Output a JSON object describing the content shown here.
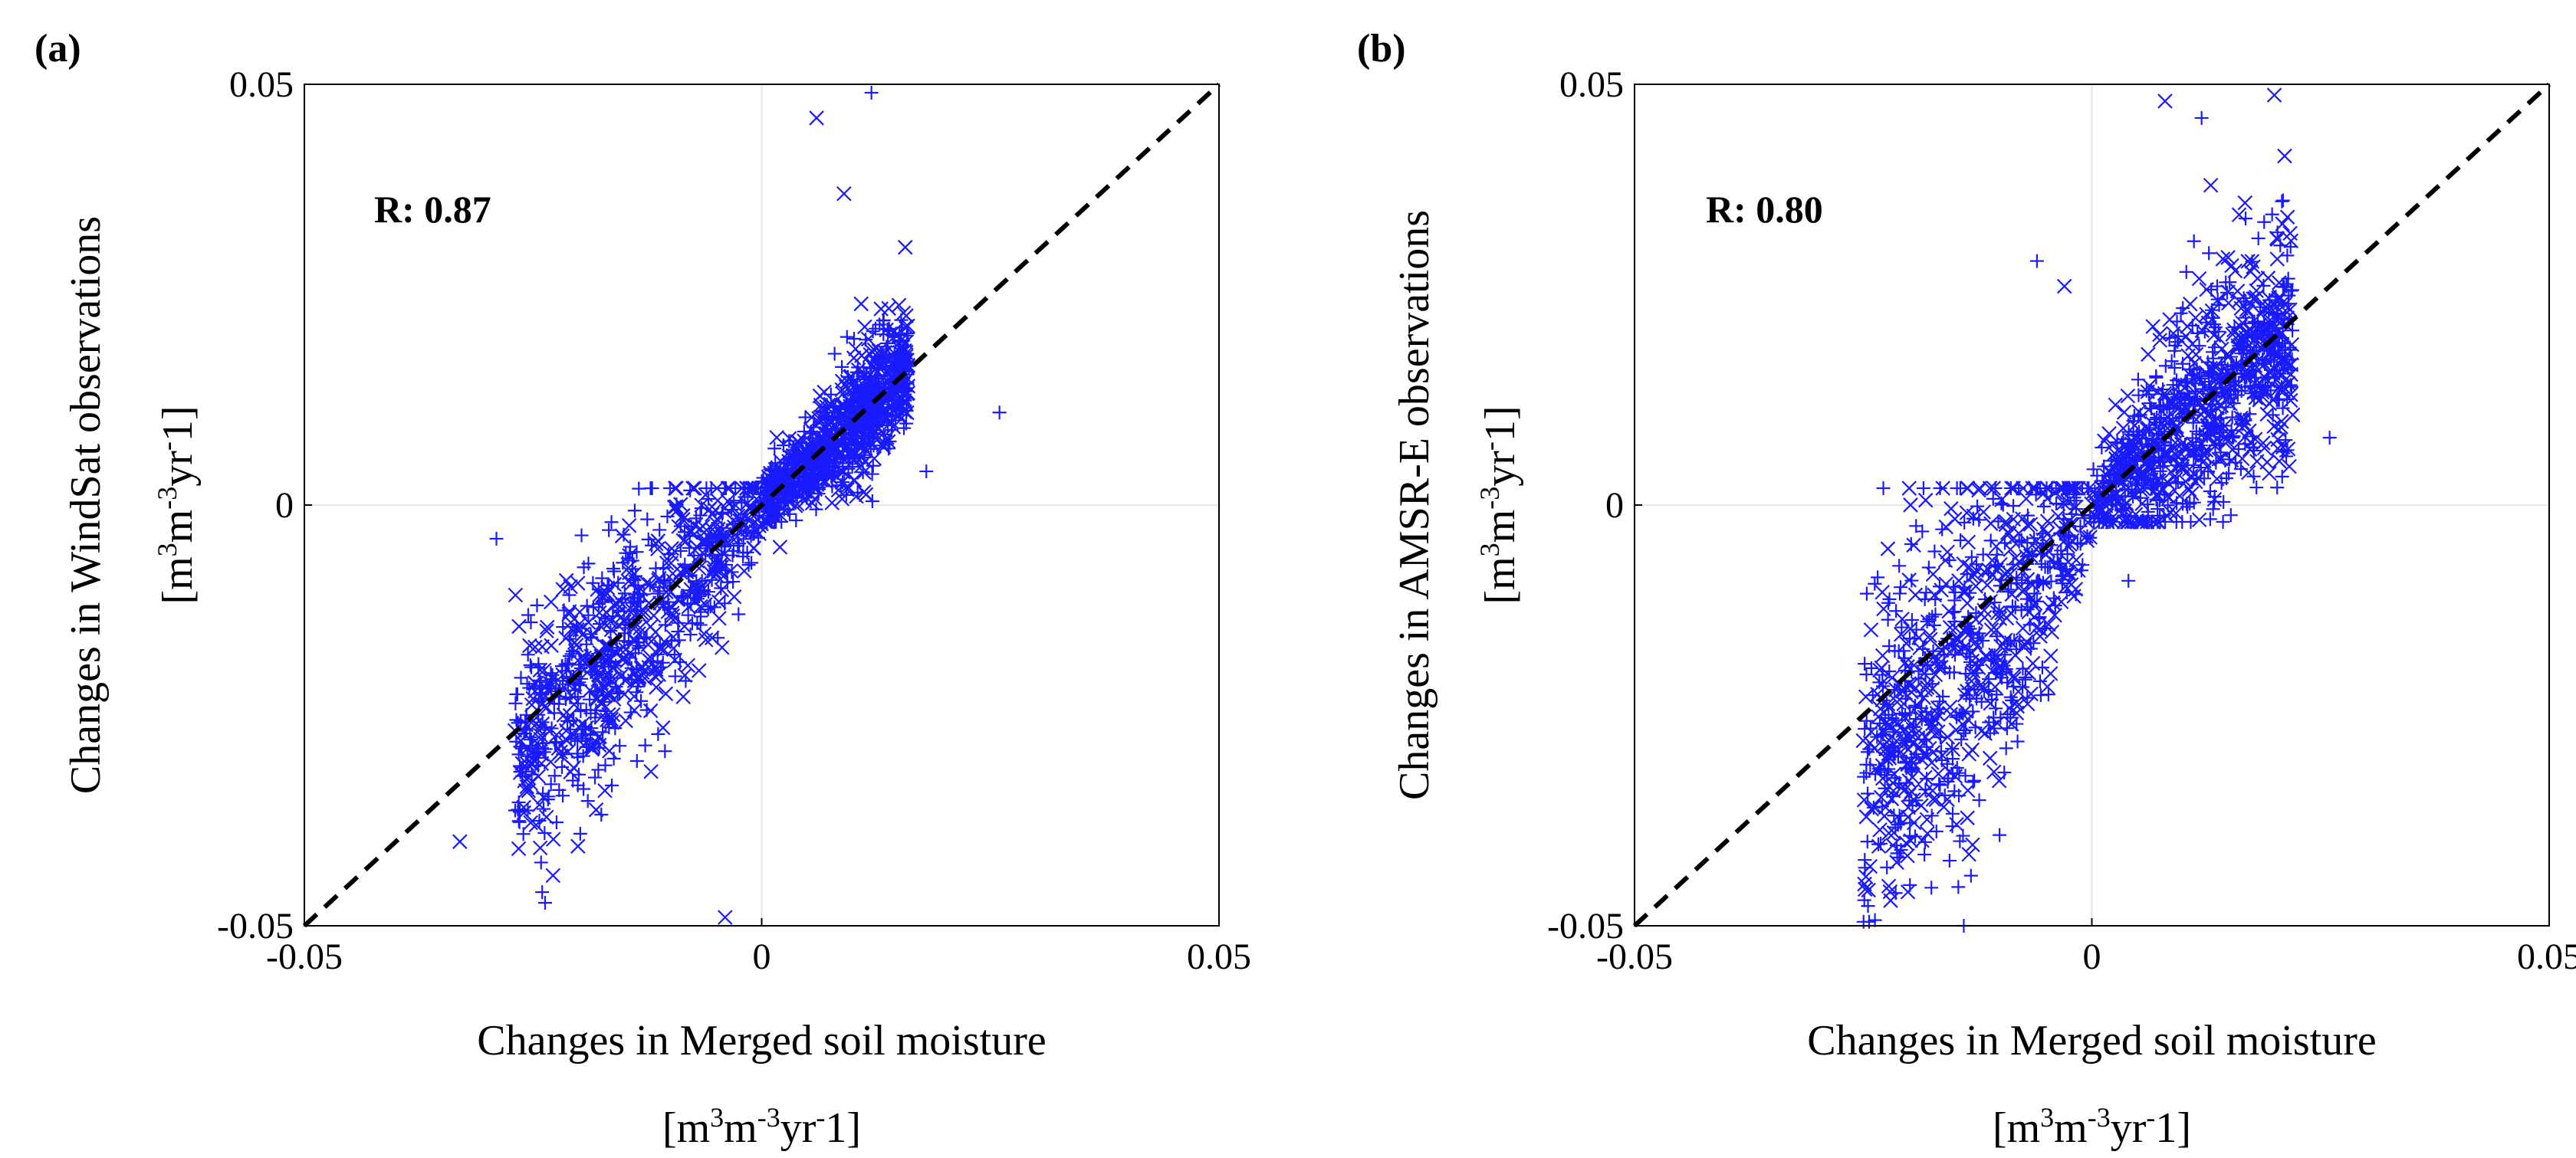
{
  "chart_data": [
    {
      "type": "scatter",
      "panel_label": "(a)",
      "xlabel_line1": "Changes in Merged soil moisture",
      "xlabel_line2_parts": [
        "[m",
        "3",
        "m",
        "-3",
        "yr",
        "-",
        "1]"
      ],
      "ylabel_line1": "Changes in WindSat observations",
      "ylabel_line2_parts": [
        "[m",
        "3",
        "m",
        "-3",
        "yr",
        "-",
        "1]"
      ],
      "xlim": [
        -0.05,
        0.05
      ],
      "ylim": [
        -0.05,
        0.05
      ],
      "x_ticks": [
        -0.05,
        0,
        0.05
      ],
      "y_ticks": [
        -0.05,
        0,
        0.05
      ],
      "x_tick_labels": [
        "-0.05",
        "0",
        "0.05"
      ],
      "y_tick_labels": [
        "-0.05",
        "0",
        "0.05"
      ],
      "annotation": "R: 0.87",
      "reference_line": {
        "style": "dashed",
        "x": [
          -0.05,
          0.05
        ],
        "y": [
          -0.05,
          0.05
        ]
      },
      "zero_gridlines": true,
      "marker_color": "#1a1aff",
      "markers": "x and +",
      "clusters": [
        {
          "quadrant": "positive",
          "x_range": [
            0.0,
            0.016
          ],
          "y_center_ratio": 1.0,
          "spread_y": 0.004,
          "n": 950
        },
        {
          "quadrant": "negative",
          "x_range": [
            -0.027,
            0.0
          ],
          "y_center_ratio": 1.1,
          "spread_y": 0.007,
          "n": 850
        }
      ],
      "outliers": [
        [
          0.006,
          0.046
        ],
        [
          0.012,
          0.049
        ],
        [
          0.009,
          0.037
        ],
        [
          -0.024,
          -0.046
        ],
        [
          -0.033,
          -0.04
        ],
        [
          -0.029,
          -0.004
        ],
        [
          -0.004,
          -0.049
        ],
        [
          0.026,
          0.011
        ],
        [
          0.002,
          -0.005
        ],
        [
          0.018,
          0.004
        ]
      ],
      "seed": 11
    },
    {
      "type": "scatter",
      "panel_label": "(b)",
      "xlabel_line1": "Changes in Merged soil moisture",
      "xlabel_line2_parts": [
        "[m",
        "3",
        "m",
        "-3",
        "yr",
        "-",
        "1]"
      ],
      "ylabel_line1": "Changes in AMSR-E observations",
      "ylabel_line2_parts": [
        "[m",
        "3",
        "m",
        "-3",
        "yr",
        "-",
        "1]"
      ],
      "xlim": [
        -0.05,
        0.05
      ],
      "ylim": [
        -0.05,
        0.05
      ],
      "x_ticks": [
        -0.05,
        0,
        0.05
      ],
      "y_ticks": [
        -0.05,
        0,
        0.05
      ],
      "x_tick_labels": [
        "-0.05",
        "0",
        "0.05"
      ],
      "y_tick_labels": [
        "-0.05",
        "0",
        "0.05"
      ],
      "annotation": "R: 0.80",
      "reference_line": {
        "style": "dashed",
        "x": [
          -0.05,
          0.05
        ],
        "y": [
          -0.05,
          0.05
        ]
      },
      "zero_gridlines": true,
      "marker_color": "#1a1aff",
      "markers": "x and +",
      "clusters": [
        {
          "quadrant": "positive",
          "x_range": [
            0.0,
            0.022
          ],
          "y_center_ratio": 0.95,
          "spread_y": 0.007,
          "n": 950
        },
        {
          "quadrant": "negative",
          "x_range": [
            -0.025,
            0.0
          ],
          "y_center_ratio": 1.35,
          "spread_y": 0.011,
          "n": 850
        }
      ],
      "outliers": [
        [
          0.008,
          0.048
        ],
        [
          0.012,
          0.046
        ],
        [
          0.013,
          0.038
        ],
        [
          -0.006,
          0.029
        ],
        [
          -0.003,
          0.026
        ],
        [
          0.026,
          0.008
        ],
        [
          -0.022,
          -0.047
        ],
        [
          -0.014,
          -0.05
        ],
        [
          -0.025,
          -0.028
        ],
        [
          0.004,
          -0.009
        ]
      ],
      "seed": 29
    }
  ]
}
